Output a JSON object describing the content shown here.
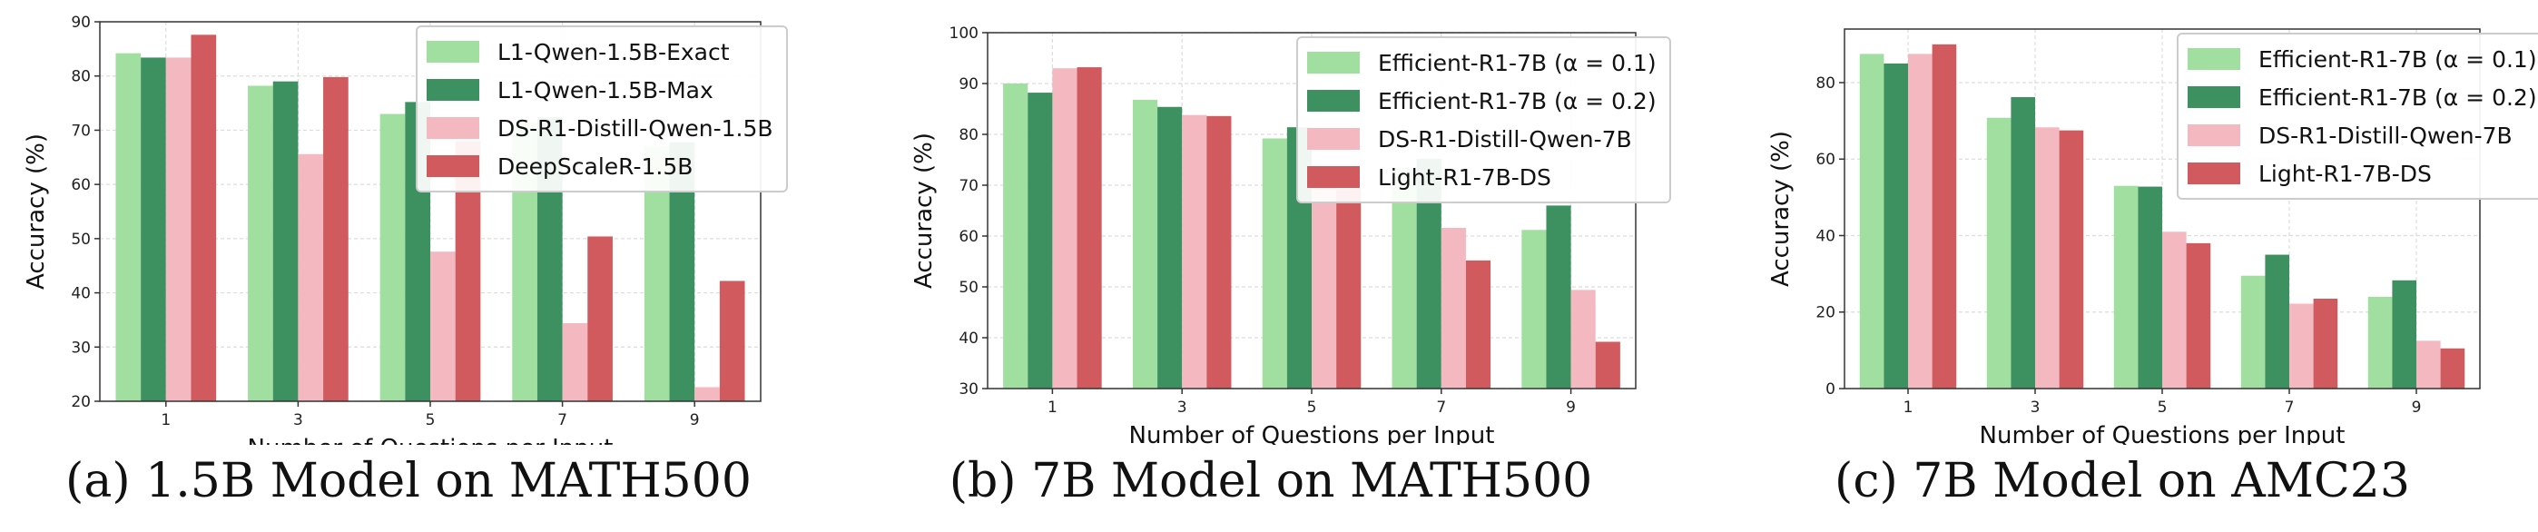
{
  "colors": {
    "light_green": "#a0dfa0",
    "dark_green": "#3d9160",
    "light_pink": "#f4b8c0",
    "red": "#d05a5e"
  },
  "chart_data": [
    {
      "type": "bar",
      "caption": "(a) 1.5B Model on MATH500",
      "xlabel": "Number of Questions per Input",
      "ylabel": "Accuracy (%)",
      "categories": [
        "1",
        "3",
        "5",
        "7",
        "9"
      ],
      "ylim": [
        20,
        90
      ],
      "yticks": [
        20,
        30,
        40,
        50,
        60,
        70,
        80,
        90
      ],
      "grid": true,
      "legend_position": "top-right",
      "series": [
        {
          "name": "L1-Qwen-1.5B-Exact",
          "color": "#a0dfa0",
          "values": [
            84.2,
            78.2,
            73.0,
            71.4,
            67.0
          ]
        },
        {
          "name": "L1-Qwen-1.5B-Max",
          "color": "#3d9160",
          "values": [
            83.4,
            79.0,
            75.2,
            72.4,
            67.8
          ]
        },
        {
          "name": "DS-R1-Distill-Qwen-1.5B",
          "color": "#f4b8c0",
          "values": [
            83.4,
            65.6,
            47.6,
            34.4,
            22.6
          ]
        },
        {
          "name": "DeepScaleR-1.5B",
          "color": "#d05a5e",
          "values": [
            87.6,
            79.8,
            68.0,
            50.4,
            42.2
          ]
        }
      ]
    },
    {
      "type": "bar",
      "caption": "(b) 7B Model on MATH500",
      "xlabel": "Number of Questions per Input",
      "ylabel": "Accuracy (%)",
      "categories": [
        "1",
        "3",
        "5",
        "7",
        "9"
      ],
      "ylim": [
        30,
        100
      ],
      "yticks": [
        30,
        40,
        50,
        60,
        70,
        80,
        90,
        100
      ],
      "grid": true,
      "legend_position": "top-right",
      "series": [
        {
          "name": "Efficient-R1-7B (α = 0.1)",
          "color": "#a0dfa0",
          "values": [
            90.0,
            86.8,
            79.2,
            73.4,
            61.2
          ]
        },
        {
          "name": "Efficient-R1-7B (α = 0.2)",
          "color": "#3d9160",
          "values": [
            88.2,
            85.4,
            81.4,
            75.2,
            66.0
          ]
        },
        {
          "name": "DS-R1-Distill-Qwen-7B",
          "color": "#f4b8c0",
          "values": [
            93.0,
            83.8,
            72.4,
            61.6,
            49.4
          ]
        },
        {
          "name": "Light-R1-7B-DS",
          "color": "#d05a5e",
          "values": [
            93.2,
            83.6,
            69.2,
            55.2,
            39.2
          ]
        }
      ]
    },
    {
      "type": "bar",
      "caption": "(c) 7B Model on AMC23",
      "xlabel": "Number of Questions per Input",
      "ylabel": "Accuracy (%)",
      "categories": [
        "1",
        "3",
        "5",
        "7",
        "9"
      ],
      "ylim": [
        0,
        94
      ],
      "yticks": [
        0,
        20,
        40,
        60,
        80
      ],
      "grid": true,
      "legend_position": "top-right",
      "series": [
        {
          "name": "Efficient-R1-7B (α = 0.1)",
          "color": "#a0dfa0",
          "values": [
            87.5,
            70.8,
            53.0,
            29.5,
            24.0
          ]
        },
        {
          "name": "Efficient-R1-7B (α = 0.2)",
          "color": "#3d9160",
          "values": [
            85.0,
            76.2,
            52.8,
            35.0,
            28.3
          ]
        },
        {
          "name": "DS-R1-Distill-Qwen-7B",
          "color": "#f4b8c0",
          "values": [
            87.5,
            68.3,
            41.0,
            22.2,
            12.5
          ]
        },
        {
          "name": "Light-R1-7B-DS",
          "color": "#d05a5e",
          "values": [
            90.0,
            67.5,
            38.0,
            23.5,
            10.5
          ]
        }
      ]
    }
  ]
}
